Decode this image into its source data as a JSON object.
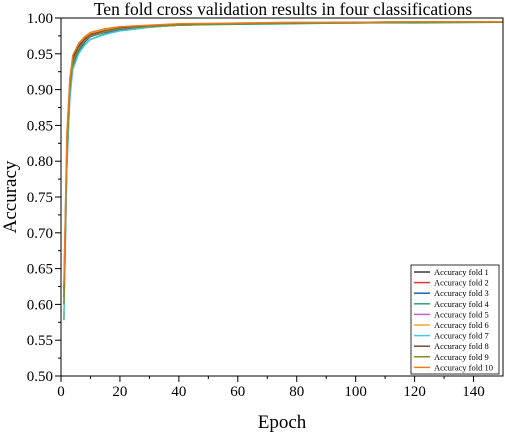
{
  "chart_data": {
    "type": "line",
    "title": "Ten fold cross validation results in four classifications",
    "xlabel": "Epoch",
    "ylabel": "Accuracy",
    "xlim": [
      0,
      150
    ],
    "ylim": [
      0.5,
      1.0
    ],
    "x_ticks": [
      "0",
      "20",
      "40",
      "60",
      "80",
      "100",
      "120",
      "140"
    ],
    "y_ticks": [
      "0.50",
      "0.55",
      "0.60",
      "0.65",
      "0.70",
      "0.75",
      "0.80",
      "0.85",
      "0.90",
      "0.95",
      "1.00"
    ],
    "grid": false,
    "legend_position": "bottom-right",
    "series": [
      {
        "name": "Accuracy fold 1",
        "color": "#3a3a3a",
        "x": [
          1,
          2,
          3,
          4,
          6,
          8,
          10,
          15,
          20,
          30,
          40,
          60,
          80,
          100,
          120,
          150
        ],
        "y": [
          0.62,
          0.83,
          0.91,
          0.945,
          0.962,
          0.972,
          0.978,
          0.983,
          0.986,
          0.989,
          0.991,
          0.992,
          0.993,
          0.994,
          0.995,
          0.995
        ]
      },
      {
        "name": "Accuracy fold 2",
        "color": "#e8352a",
        "x": [
          1,
          2,
          3,
          4,
          6,
          8,
          10,
          15,
          20,
          30,
          40,
          60,
          80,
          100,
          120,
          150
        ],
        "y": [
          0.61,
          0.82,
          0.9,
          0.94,
          0.96,
          0.97,
          0.977,
          0.982,
          0.985,
          0.988,
          0.99,
          0.992,
          0.993,
          0.993,
          0.994,
          0.994
        ]
      },
      {
        "name": "Accuracy fold 3",
        "color": "#1f5fb4",
        "x": [
          1,
          2,
          3,
          4,
          6,
          8,
          10,
          15,
          20,
          30,
          40,
          60,
          80,
          100,
          120,
          150
        ],
        "y": [
          0.6,
          0.8,
          0.895,
          0.935,
          0.955,
          0.966,
          0.974,
          0.98,
          0.984,
          0.988,
          0.99,
          0.992,
          0.993,
          0.994,
          0.994,
          0.995
        ]
      },
      {
        "name": "Accuracy fold 4",
        "color": "#2aa36b",
        "x": [
          1,
          2,
          3,
          4,
          6,
          8,
          10,
          15,
          20,
          30,
          40,
          60,
          80,
          100,
          120,
          150
        ],
        "y": [
          0.578,
          0.79,
          0.89,
          0.93,
          0.952,
          0.963,
          0.97,
          0.978,
          0.982,
          0.987,
          0.99,
          0.991,
          0.992,
          0.993,
          0.993,
          0.994
        ]
      },
      {
        "name": "Accuracy fold 5",
        "color": "#c060d0",
        "x": [
          1,
          2,
          3,
          4,
          6,
          8,
          10,
          15,
          20,
          30,
          40,
          60,
          80,
          100,
          120,
          150
        ],
        "y": [
          0.62,
          0.82,
          0.905,
          0.94,
          0.958,
          0.968,
          0.975,
          0.981,
          0.985,
          0.989,
          0.991,
          0.992,
          0.993,
          0.994,
          0.994,
          0.995
        ]
      },
      {
        "name": "Accuracy fold 6",
        "color": "#f0a830",
        "x": [
          1,
          2,
          3,
          4,
          6,
          8,
          10,
          15,
          20,
          30,
          40,
          60,
          80,
          100,
          120,
          150
        ],
        "y": [
          0.63,
          0.84,
          0.915,
          0.948,
          0.964,
          0.973,
          0.979,
          0.984,
          0.987,
          0.99,
          0.991,
          0.993,
          0.994,
          0.994,
          0.995,
          0.995
        ]
      },
      {
        "name": "Accuracy fold 7",
        "color": "#40c8e8",
        "x": [
          1,
          2,
          3,
          4,
          6,
          8,
          10,
          15,
          20,
          30,
          40,
          60,
          80,
          100,
          120,
          150
        ],
        "y": [
          0.59,
          0.79,
          0.885,
          0.928,
          0.95,
          0.962,
          0.97,
          0.977,
          0.982,
          0.987,
          0.99,
          0.992,
          0.993,
          0.993,
          0.994,
          0.994
        ]
      },
      {
        "name": "Accuracy fold 8",
        "color": "#7a4a3a",
        "x": [
          1,
          2,
          3,
          4,
          6,
          8,
          10,
          15,
          20,
          30,
          40,
          60,
          80,
          100,
          120,
          150
        ],
        "y": [
          0.61,
          0.82,
          0.905,
          0.942,
          0.96,
          0.97,
          0.976,
          0.982,
          0.986,
          0.989,
          0.991,
          0.992,
          0.993,
          0.994,
          0.994,
          0.995
        ]
      },
      {
        "name": "Accuracy fold 9",
        "color": "#8a8a20",
        "x": [
          1,
          2,
          3,
          4,
          6,
          8,
          10,
          15,
          20,
          30,
          40,
          60,
          80,
          100,
          120,
          150
        ],
        "y": [
          0.6,
          0.81,
          0.9,
          0.938,
          0.957,
          0.968,
          0.975,
          0.981,
          0.985,
          0.988,
          0.99,
          0.992,
          0.993,
          0.993,
          0.994,
          0.994
        ]
      },
      {
        "name": "Accuracy fold 10",
        "color": "#f07820",
        "x": [
          1,
          2,
          3,
          4,
          6,
          8,
          10,
          15,
          20,
          30,
          40,
          60,
          80,
          100,
          120,
          150
        ],
        "y": [
          0.63,
          0.84,
          0.915,
          0.948,
          0.965,
          0.974,
          0.98,
          0.985,
          0.988,
          0.99,
          0.992,
          0.993,
          0.994,
          0.994,
          0.995,
          0.995
        ]
      }
    ]
  }
}
